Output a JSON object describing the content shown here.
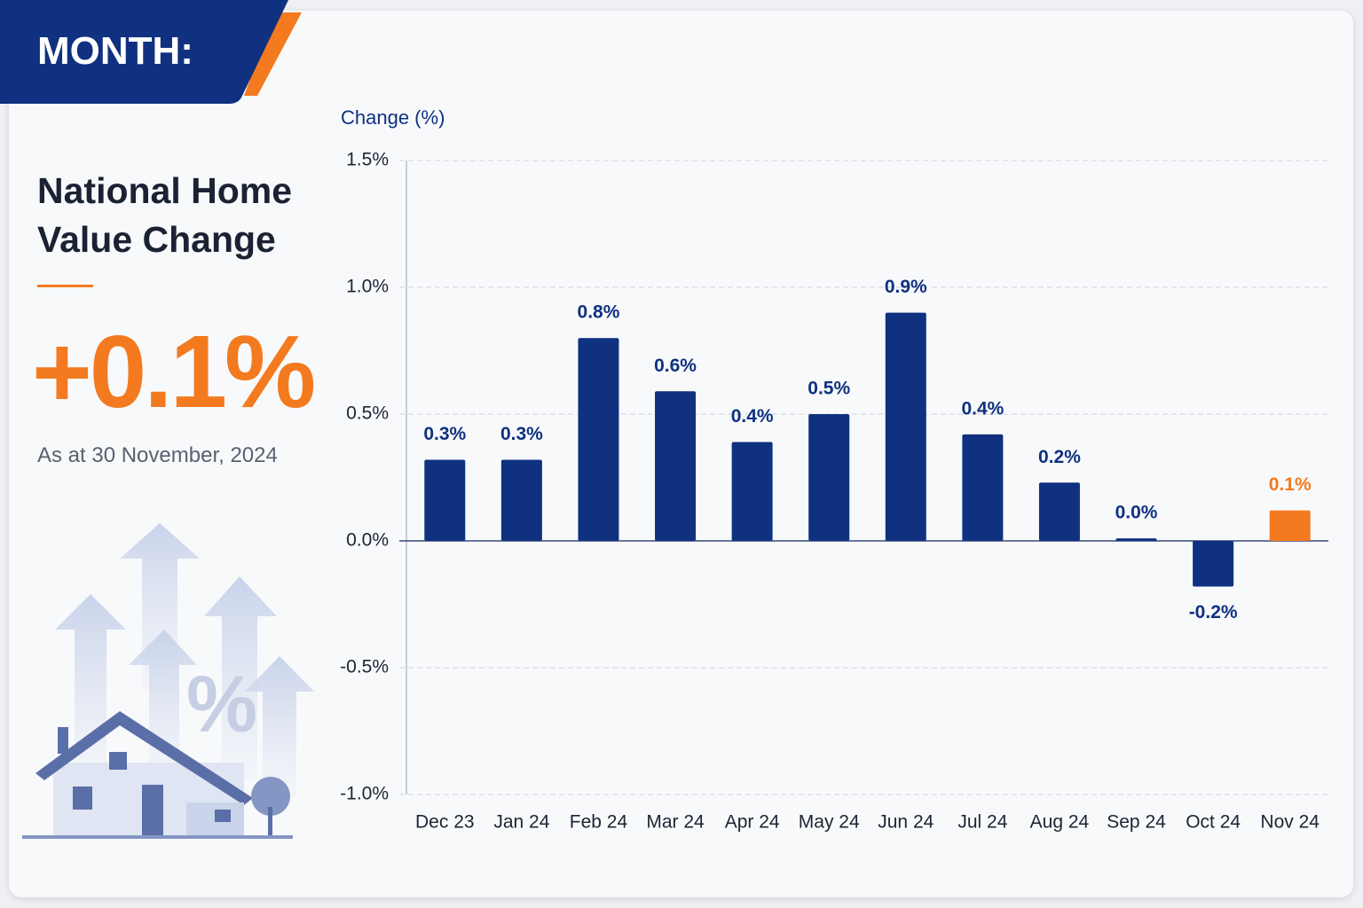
{
  "header": {
    "label": "MONTH:"
  },
  "summary": {
    "title": "National Home Value Change",
    "headline": "+0.1%",
    "date": "As at 30 November, 2024",
    "illustration_symbol": "%"
  },
  "chart_data": {
    "type": "bar",
    "y_label": "Change (%)",
    "categories": [
      "Dec 23",
      "Jan 24",
      "Feb 24",
      "Mar 24",
      "Apr 24",
      "May 24",
      "Jun 24",
      "Jul 24",
      "Aug 24",
      "Sep 24",
      "Oct 24",
      "Nov 24"
    ],
    "values": [
      0.32,
      0.32,
      0.8,
      0.59,
      0.39,
      0.5,
      0.9,
      0.42,
      0.23,
      0.01,
      -0.18,
      0.12
    ],
    "value_labels": [
      "0.3%",
      "0.3%",
      "0.8%",
      "0.6%",
      "0.4%",
      "0.5%",
      "0.9%",
      "0.4%",
      "0.2%",
      "0.0%",
      "-0.2%",
      "0.1%"
    ],
    "colors": [
      "#0f3180",
      "#0f3180",
      "#0f3180",
      "#0f3180",
      "#0f3180",
      "#0f3180",
      "#0f3180",
      "#0f3180",
      "#0f3180",
      "#0f3180",
      "#0f3180",
      "#f47a1f"
    ],
    "ylim": [
      -1,
      1.5
    ],
    "yticks": [
      {
        "value": 1.5,
        "label": "1.5%"
      },
      {
        "value": 1,
        "label": "1.0%"
      },
      {
        "value": 0.5,
        "label": "0.5%"
      },
      {
        "value": 0,
        "label": "0.0%"
      },
      {
        "value": -0.5,
        "label": "-0.5%"
      },
      {
        "value": -1,
        "label": "-1.0%"
      }
    ],
    "grid": true
  }
}
